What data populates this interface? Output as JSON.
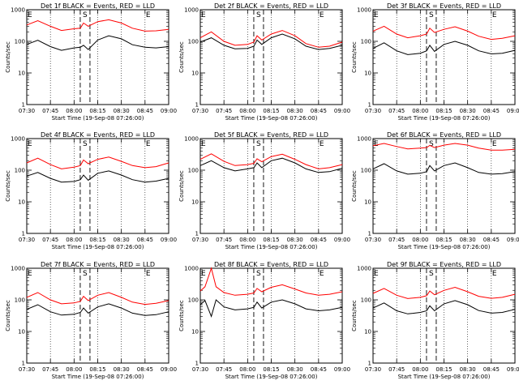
{
  "chart_data": [
    {
      "type": "line",
      "title": "Det 1f BLACK = Events, RED = LLD",
      "xlabel": "Start Time (19-Sep-08 07:26:00)",
      "ylabel": "Counts/sec",
      "yscale": "log",
      "ylim": [
        1,
        1000
      ],
      "xlim": [
        "07:30",
        "09:00"
      ],
      "xticks": [
        "07:30",
        "07:45",
        "08:00",
        "08:15",
        "08:30",
        "08:45",
        "09:00"
      ],
      "yticks": [
        "1",
        "10",
        "100",
        "1000"
      ],
      "markers": {
        "E_left": "07:30",
        "S": "08:07",
        "E_right": "08:45"
      },
      "series": [
        {
          "color": "#000000",
          "x": [
            "07:30",
            "07:37",
            "07:45",
            "07:52",
            "08:00",
            "08:04",
            "08:06",
            "08:09",
            "08:15",
            "08:22",
            "08:30",
            "08:37",
            "08:45",
            "08:52",
            "09:00"
          ],
          "values": [
            80,
            108,
            68,
            52,
            62,
            65,
            75,
            55,
            110,
            150,
            120,
            78,
            65,
            62,
            68
          ]
        },
        {
          "color": "#ff0000",
          "x": [
            "07:30",
            "07:37",
            "07:45",
            "07:52",
            "08:00",
            "08:04",
            "08:06",
            "08:09",
            "08:15",
            "08:22",
            "08:30",
            "08:37",
            "08:45",
            "08:52",
            "09:00"
          ],
          "values": [
            330,
            450,
            300,
            220,
            250,
            260,
            380,
            300,
            420,
            480,
            380,
            260,
            210,
            215,
            240
          ]
        }
      ]
    },
    {
      "type": "line",
      "title": "Det 2f BLACK = Events, RED = LLD",
      "xlabel": "Start Time (19-Sep-08 07:26:00)",
      "ylabel": "Counts/sec",
      "yscale": "log",
      "ylim": [
        1,
        1000
      ],
      "xlim": [
        "07:30",
        "09:00"
      ],
      "xticks": [
        "07:30",
        "07:45",
        "08:00",
        "08:15",
        "08:30",
        "08:45",
        "09:00"
      ],
      "yticks": [
        "1",
        "10",
        "100",
        "1000"
      ],
      "markers": {
        "E_left": "07:30",
        "S": "08:07",
        "E_right": "08:45"
      },
      "series": [
        {
          "color": "#000000",
          "x": [
            "07:30",
            "07:37",
            "07:45",
            "07:52",
            "08:00",
            "08:04",
            "08:06",
            "08:09",
            "08:15",
            "08:22",
            "08:30",
            "08:37",
            "08:45",
            "08:52",
            "09:00"
          ],
          "values": [
            95,
            130,
            75,
            58,
            60,
            70,
            110,
            80,
            130,
            170,
            120,
            70,
            55,
            60,
            75
          ]
        },
        {
          "color": "#ff0000",
          "x": [
            "07:30",
            "07:37",
            "07:45",
            "07:52",
            "08:00",
            "08:04",
            "08:06",
            "08:09",
            "08:15",
            "08:22",
            "08:30",
            "08:37",
            "08:45",
            "08:52",
            "09:00"
          ],
          "values": [
            130,
            200,
            100,
            75,
            80,
            95,
            150,
            110,
            170,
            220,
            150,
            85,
            65,
            70,
            95
          ]
        }
      ]
    },
    {
      "type": "line",
      "title": "Det 3f BLACK = Events, RED = LLD",
      "xlabel": "Start Time (19-Sep-08 07:26:00)",
      "ylabel": "Counts/sec",
      "yscale": "log",
      "ylim": [
        1,
        1000
      ],
      "xlim": [
        "07:30",
        "09:00"
      ],
      "xticks": [
        "07:30",
        "07:45",
        "08:00",
        "08:15",
        "08:30",
        "08:45",
        "09:00"
      ],
      "yticks": [
        "1",
        "10",
        "100",
        "1000"
      ],
      "markers": {
        "E_left": "07:30",
        "S": "08:07",
        "E_right": "08:45"
      },
      "series": [
        {
          "color": "#000000",
          "x": [
            "07:30",
            "07:37",
            "07:45",
            "07:52",
            "08:00",
            "08:04",
            "08:06",
            "08:09",
            "08:15",
            "08:22",
            "08:30",
            "08:37",
            "08:45",
            "08:52",
            "09:00"
          ],
          "values": [
            60,
            90,
            50,
            38,
            42,
            50,
            75,
            48,
            80,
            100,
            75,
            50,
            40,
            42,
            52
          ]
        },
        {
          "color": "#ff0000",
          "x": [
            "07:30",
            "07:37",
            "07:45",
            "07:52",
            "08:00",
            "08:04",
            "08:06",
            "08:09",
            "08:15",
            "08:22",
            "08:30",
            "08:37",
            "08:45",
            "08:52",
            "09:00"
          ],
          "values": [
            210,
            300,
            170,
            130,
            150,
            170,
            260,
            190,
            240,
            290,
            210,
            145,
            115,
            125,
            150
          ]
        }
      ]
    },
    {
      "type": "line",
      "title": "Det 4f BLACK = Events, RED = LLD",
      "xlabel": "Start Time (19-Sep-08 07:26:00)",
      "ylabel": "Counts/sec",
      "yscale": "log",
      "ylim": [
        1,
        1000
      ],
      "xlim": [
        "07:30",
        "09:00"
      ],
      "xticks": [
        "07:30",
        "07:45",
        "08:00",
        "08:15",
        "08:30",
        "08:45",
        "09:00"
      ],
      "yticks": [
        "1",
        "10",
        "100",
        "1000"
      ],
      "markers": {
        "E_left": "07:30",
        "S": "08:07",
        "E_right": "08:45"
      },
      "series": [
        {
          "color": "#000000",
          "x": [
            "07:30",
            "07:37",
            "07:45",
            "07:52",
            "08:00",
            "08:04",
            "08:06",
            "08:09",
            "08:15",
            "08:22",
            "08:30",
            "08:37",
            "08:45",
            "08:52",
            "09:00"
          ],
          "values": [
            65,
            85,
            55,
            42,
            44,
            50,
            70,
            48,
            80,
            95,
            70,
            50,
            42,
            45,
            55
          ]
        },
        {
          "color": "#ff0000",
          "x": [
            "07:30",
            "07:37",
            "07:45",
            "07:52",
            "08:00",
            "08:04",
            "08:06",
            "08:09",
            "08:15",
            "08:22",
            "08:30",
            "08:37",
            "08:45",
            "08:52",
            "09:00"
          ],
          "values": [
            170,
            240,
            150,
            110,
            125,
            140,
            210,
            160,
            220,
            260,
            190,
            140,
            120,
            130,
            170
          ]
        }
      ]
    },
    {
      "type": "line",
      "title": "Det 5f BLACK = Events, RED = LLD",
      "xlabel": "Start Time (19-Sep-08 07:26:00)",
      "ylabel": "Counts/sec",
      "yscale": "log",
      "ylim": [
        1,
        1000
      ],
      "xlim": [
        "07:30",
        "09:00"
      ],
      "xticks": [
        "07:30",
        "07:45",
        "08:00",
        "08:15",
        "08:30",
        "08:45",
        "09:00"
      ],
      "yticks": [
        "1",
        "10",
        "100",
        "1000"
      ],
      "markers": {
        "E_left": "07:30",
        "S": "08:07",
        "E_right": "08:45"
      },
      "series": [
        {
          "color": "#000000",
          "x": [
            "07:30",
            "07:37",
            "07:45",
            "07:52",
            "08:00",
            "08:04",
            "08:06",
            "08:09",
            "08:15",
            "08:22",
            "08:30",
            "08:37",
            "08:45",
            "08:52",
            "09:00"
          ],
          "values": [
            140,
            200,
            120,
            95,
            110,
            120,
            170,
            120,
            200,
            240,
            170,
            110,
            85,
            90,
            115
          ]
        },
        {
          "color": "#ff0000",
          "x": [
            "07:30",
            "07:37",
            "07:45",
            "07:52",
            "08:00",
            "08:04",
            "08:06",
            "08:09",
            "08:15",
            "08:22",
            "08:30",
            "08:37",
            "08:45",
            "08:52",
            "09:00"
          ],
          "values": [
            220,
            330,
            190,
            140,
            150,
            165,
            230,
            185,
            270,
            320,
            220,
            150,
            110,
            120,
            150
          ]
        }
      ]
    },
    {
      "type": "line",
      "title": "Det 6f BLACK = Events, RED = LLD",
      "xlabel": "Start Time (19-Sep-08 07:26:00)",
      "ylabel": "Counts/sec",
      "yscale": "log",
      "ylim": [
        1,
        1000
      ],
      "xlim": [
        "07:30",
        "09:00"
      ],
      "xticks": [
        "07:30",
        "07:45",
        "08:00",
        "08:15",
        "08:30",
        "08:45",
        "09:00"
      ],
      "yticks": [
        "1",
        "10",
        "100",
        "1000"
      ],
      "markers": {
        "E_left": "07:30",
        "S": "08:07",
        "E_right": "08:45"
      },
      "series": [
        {
          "color": "#000000",
          "x": [
            "07:30",
            "07:37",
            "07:45",
            "07:52",
            "08:00",
            "08:04",
            "08:06",
            "08:09",
            "08:15",
            "08:22",
            "08:30",
            "08:37",
            "08:45",
            "08:52",
            "09:00"
          ],
          "values": [
            110,
            160,
            95,
            75,
            80,
            90,
            140,
            95,
            140,
            170,
            120,
            85,
            75,
            78,
            90
          ]
        },
        {
          "color": "#ff0000",
          "x": [
            "07:30",
            "07:37",
            "07:45",
            "07:52",
            "08:00",
            "08:04",
            "08:06",
            "08:09",
            "08:15",
            "08:22",
            "08:30",
            "08:37",
            "08:45",
            "08:52",
            "09:00"
          ],
          "values": [
            600,
            700,
            560,
            470,
            500,
            520,
            610,
            520,
            620,
            700,
            620,
            500,
            430,
            430,
            460
          ]
        }
      ]
    },
    {
      "type": "line",
      "title": "Det 7f BLACK = Events, RED = LLD",
      "xlabel": "Start Time (19-Sep-08 07:26:00)",
      "ylabel": "Counts/sec",
      "yscale": "log",
      "ylim": [
        1,
        1000
      ],
      "xlim": [
        "07:30",
        "09:00"
      ],
      "xticks": [
        "07:30",
        "07:45",
        "08:00",
        "08:15",
        "08:30",
        "08:45",
        "09:00"
      ],
      "yticks": [
        "1",
        "10",
        "100",
        "1000"
      ],
      "markers": {
        "E_left": "07:30",
        "S": "08:07",
        "E_right": "08:45"
      },
      "series": [
        {
          "color": "#000000",
          "x": [
            "07:30",
            "07:37",
            "07:45",
            "07:52",
            "08:00",
            "08:04",
            "08:06",
            "08:09",
            "08:15",
            "08:22",
            "08:30",
            "08:37",
            "08:45",
            "08:52",
            "09:00"
          ],
          "values": [
            50,
            70,
            42,
            33,
            35,
            40,
            55,
            38,
            60,
            75,
            55,
            38,
            32,
            34,
            42
          ]
        },
        {
          "color": "#ff0000",
          "x": [
            "07:30",
            "07:37",
            "07:45",
            "07:52",
            "08:00",
            "08:04",
            "08:06",
            "08:09",
            "08:15",
            "08:22",
            "08:30",
            "08:37",
            "08:45",
            "08:52",
            "09:00"
          ],
          "values": [
            120,
            170,
            100,
            75,
            80,
            90,
            130,
            95,
            140,
            170,
            120,
            85,
            72,
            78,
            95
          ]
        }
      ]
    },
    {
      "type": "line",
      "title": "Det 8f BLACK = Events, RED = LLD",
      "xlabel": "Start Time (19-Sep-08 07:26:00)",
      "ylabel": "Counts/sec",
      "yscale": "log",
      "ylim": [
        1,
        1000
      ],
      "xlim": [
        "07:30",
        "09:00"
      ],
      "xticks": [
        "07:30",
        "07:45",
        "08:00",
        "08:15",
        "08:30",
        "08:45",
        "09:00"
      ],
      "yticks": [
        "1",
        "10",
        "100",
        "1000"
      ],
      "markers": {
        "E_left": "07:30",
        "S": "08:07",
        "E_right": "08:45"
      },
      "series": [
        {
          "color": "#000000",
          "x": [
            "07:30",
            "07:33",
            "07:37",
            "07:40",
            "07:45",
            "07:52",
            "08:00",
            "08:04",
            "08:06",
            "08:09",
            "08:15",
            "08:22",
            "08:30",
            "08:37",
            "08:45",
            "08:52",
            "09:00"
          ],
          "values": [
            70,
            95,
            30,
            100,
            60,
            48,
            52,
            58,
            85,
            55,
            85,
            100,
            75,
            52,
            45,
            48,
            58
          ]
        },
        {
          "color": "#ff0000",
          "x": [
            "07:30",
            "07:33",
            "07:37",
            "07:40",
            "07:45",
            "07:52",
            "08:00",
            "08:04",
            "08:06",
            "08:09",
            "08:15",
            "08:22",
            "08:30",
            "08:37",
            "08:45",
            "08:52",
            "09:00"
          ],
          "values": [
            190,
            260,
            1000,
            260,
            170,
            140,
            150,
            165,
            230,
            180,
            250,
            300,
            220,
            165,
            140,
            150,
            180
          ]
        }
      ]
    },
    {
      "type": "line",
      "title": "Det 9f BLACK = Events, RED = LLD",
      "xlabel": "Start Time (19-Sep-08 07:26:00)",
      "ylabel": "Counts/sec",
      "yscale": "log",
      "ylim": [
        1,
        1000
      ],
      "xlim": [
        "07:30",
        "09:00"
      ],
      "xticks": [
        "07:30",
        "07:45",
        "08:00",
        "08:15",
        "08:30",
        "08:45",
        "09:00"
      ],
      "yticks": [
        "1",
        "10",
        "100",
        "1000"
      ],
      "markers": {
        "E_left": "07:30",
        "S": "08:07",
        "E_right": "08:45"
      },
      "series": [
        {
          "color": "#000000",
          "x": [
            "07:30",
            "07:37",
            "07:45",
            "07:52",
            "08:00",
            "08:04",
            "08:06",
            "08:09",
            "08:15",
            "08:22",
            "08:30",
            "08:37",
            "08:45",
            "08:52",
            "09:00"
          ],
          "values": [
            55,
            80,
            45,
            36,
            40,
            45,
            65,
            45,
            75,
            95,
            70,
            46,
            38,
            40,
            50
          ]
        },
        {
          "color": "#ff0000",
          "x": [
            "07:30",
            "07:37",
            "07:45",
            "07:52",
            "08:00",
            "08:04",
            "08:06",
            "08:09",
            "08:15",
            "08:22",
            "08:30",
            "08:37",
            "08:45",
            "08:52",
            "09:00"
          ],
          "values": [
            160,
            230,
            140,
            110,
            120,
            135,
            190,
            145,
            200,
            250,
            180,
            130,
            112,
            120,
            150
          ]
        }
      ]
    }
  ]
}
